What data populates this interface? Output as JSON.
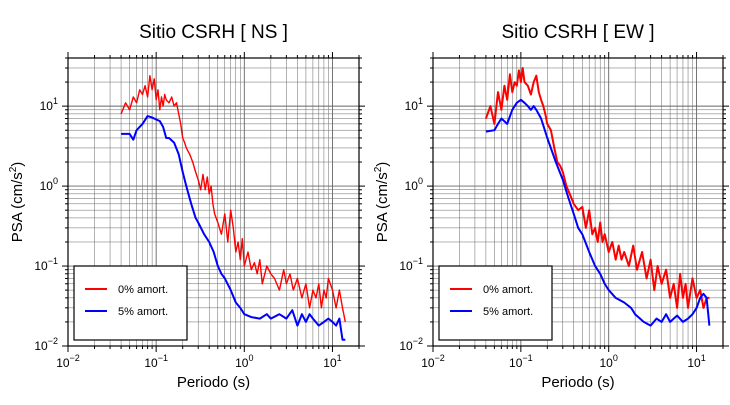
{
  "chart_data": [
    {
      "type": "line",
      "title": "Sitio CSRH [ NS ]",
      "xlabel": "Periodo (s)",
      "ylabel_main": "PSA (cm/s",
      "ylabel_exp": "2",
      "ylabel_close": ")",
      "xscale": "log",
      "yscale": "log",
      "xlim": [
        0.01,
        20
      ],
      "ylim": [
        0.01,
        40
      ],
      "grid": true,
      "legend_position": "bottom-left",
      "x_ticks": [
        {
          "base": "10",
          "exp": "−2"
        },
        {
          "base": "10",
          "exp": "−1"
        },
        {
          "base": "10",
          "exp": "0"
        },
        {
          "base": "10",
          "exp": "1"
        }
      ],
      "y_ticks": [
        {
          "base": "10",
          "exp": "−2"
        },
        {
          "base": "10",
          "exp": "−1"
        },
        {
          "base": "10",
          "exp": "0"
        },
        {
          "base": "10",
          "exp": "1"
        }
      ],
      "series": [
        {
          "name": "0% amort.",
          "color": "#ff0000",
          "x": [
            0.04,
            0.045,
            0.05,
            0.055,
            0.06,
            0.065,
            0.07,
            0.075,
            0.08,
            0.085,
            0.09,
            0.095,
            0.1,
            0.105,
            0.11,
            0.115,
            0.12,
            0.125,
            0.13,
            0.14,
            0.15,
            0.16,
            0.17,
            0.18,
            0.19,
            0.2,
            0.21,
            0.22,
            0.24,
            0.26,
            0.28,
            0.3,
            0.32,
            0.34,
            0.36,
            0.38,
            0.4,
            0.42,
            0.44,
            0.46,
            0.5,
            0.55,
            0.6,
            0.65,
            0.7,
            0.75,
            0.8,
            0.85,
            0.9,
            0.95,
            1.0,
            1.1,
            1.2,
            1.3,
            1.4,
            1.5,
            1.6,
            1.8,
            2.0,
            2.2,
            2.5,
            2.8,
            3.0,
            3.3,
            3.6,
            4.0,
            4.5,
            5.0,
            5.5,
            6.0,
            6.5,
            7.0,
            7.5,
            8.0,
            8.5,
            9.0,
            10,
            11,
            12,
            13,
            14
          ],
          "y": [
            8,
            11,
            9,
            13,
            11,
            16,
            14,
            18,
            13,
            24,
            16,
            22,
            12,
            16,
            9,
            13,
            10,
            14,
            12,
            11,
            13,
            10,
            11,
            8,
            6,
            4,
            3.5,
            3,
            2.5,
            2,
            1.5,
            1.2,
            0.9,
            1.4,
            0.9,
            1.3,
            0.8,
            1,
            0.6,
            0.45,
            0.35,
            0.25,
            0.45,
            0.2,
            0.5,
            0.3,
            0.15,
            0.2,
            0.12,
            0.22,
            0.1,
            0.15,
            0.09,
            0.11,
            0.08,
            0.12,
            0.06,
            0.1,
            0.08,
            0.07,
            0.05,
            0.09,
            0.06,
            0.08,
            0.05,
            0.07,
            0.04,
            0.06,
            0.03,
            0.05,
            0.04,
            0.06,
            0.03,
            0.05,
            0.04,
            0.07,
            0.05,
            0.03,
            0.05,
            0.03,
            0.02
          ]
        },
        {
          "name": "5% amort.",
          "color": "#0000ff",
          "x": [
            0.04,
            0.05,
            0.055,
            0.06,
            0.07,
            0.08,
            0.09,
            0.1,
            0.11,
            0.12,
            0.13,
            0.14,
            0.16,
            0.18,
            0.2,
            0.22,
            0.25,
            0.28,
            0.3,
            0.35,
            0.4,
            0.45,
            0.5,
            0.55,
            0.6,
            0.7,
            0.8,
            0.9,
            1.0,
            1.2,
            1.5,
            1.8,
            2.0,
            2.5,
            3.0,
            3.5,
            4.0,
            4.5,
            5.0,
            5.5,
            6.0,
            7.0,
            8.0,
            9.0,
            10,
            11,
            12,
            13,
            14
          ],
          "y": [
            4.5,
            4.5,
            3.8,
            5,
            6,
            7.5,
            7.2,
            6.8,
            6.5,
            5.5,
            4,
            4,
            3.5,
            2.5,
            1.5,
            1,
            0.6,
            0.4,
            0.35,
            0.25,
            0.2,
            0.15,
            0.1,
            0.08,
            0.07,
            0.05,
            0.035,
            0.03,
            0.025,
            0.023,
            0.022,
            0.025,
            0.022,
            0.025,
            0.022,
            0.028,
            0.018,
            0.025,
            0.02,
            0.025,
            0.022,
            0.018,
            0.02,
            0.022,
            0.02,
            0.018,
            0.022,
            0.012,
            0.012
          ]
        }
      ]
    },
    {
      "type": "line",
      "title": "Sitio CSRH [ EW ]",
      "xlabel": "Periodo (s)",
      "ylabel_main": "PSA (cm/s",
      "ylabel_exp": "2",
      "ylabel_close": ")",
      "xscale": "log",
      "yscale": "log",
      "xlim": [
        0.01,
        20
      ],
      "ylim": [
        0.01,
        40
      ],
      "grid": true,
      "legend_position": "bottom-left",
      "x_ticks": [
        {
          "base": "10",
          "exp": "−2"
        },
        {
          "base": "10",
          "exp": "−1"
        },
        {
          "base": "10",
          "exp": "0"
        },
        {
          "base": "10",
          "exp": "1"
        }
      ],
      "y_ticks": [
        {
          "base": "10",
          "exp": "−2"
        },
        {
          "base": "10",
          "exp": "−1"
        },
        {
          "base": "10",
          "exp": "0"
        },
        {
          "base": "10",
          "exp": "1"
        }
      ],
      "series": [
        {
          "name": "0% amort.",
          "color": "#ff0000",
          "x": [
            0.04,
            0.045,
            0.05,
            0.055,
            0.06,
            0.065,
            0.07,
            0.075,
            0.08,
            0.085,
            0.09,
            0.095,
            0.1,
            0.105,
            0.11,
            0.12,
            0.13,
            0.14,
            0.15,
            0.16,
            0.17,
            0.18,
            0.19,
            0.2,
            0.22,
            0.24,
            0.26,
            0.28,
            0.3,
            0.33,
            0.36,
            0.4,
            0.45,
            0.5,
            0.55,
            0.6,
            0.65,
            0.7,
            0.75,
            0.8,
            0.85,
            0.9,
            1.0,
            1.1,
            1.2,
            1.3,
            1.4,
            1.5,
            1.7,
            1.9,
            2.1,
            2.4,
            2.7,
            3.0,
            3.3,
            3.6,
            4.0,
            4.5,
            5.0,
            5.5,
            6.0,
            6.5,
            7.0,
            7.5,
            8.0,
            9.0,
            10,
            11,
            12,
            13,
            14
          ],
          "y": [
            7,
            10,
            6,
            15,
            9,
            18,
            12,
            25,
            15,
            20,
            18,
            28,
            20,
            30,
            20,
            18,
            14,
            20,
            24,
            15,
            12,
            10,
            8,
            6,
            5,
            3,
            2,
            1.8,
            1.5,
            1,
            0.8,
            0.6,
            0.5,
            0.55,
            0.3,
            0.5,
            0.25,
            0.3,
            0.2,
            0.35,
            0.2,
            0.25,
            0.15,
            0.2,
            0.12,
            0.18,
            0.12,
            0.15,
            0.1,
            0.18,
            0.09,
            0.15,
            0.07,
            0.12,
            0.05,
            0.1,
            0.06,
            0.09,
            0.04,
            0.06,
            0.03,
            0.08,
            0.04,
            0.06,
            0.03,
            0.07,
            0.04,
            0.05,
            0.03,
            0.04,
            0.04
          ]
        },
        {
          "name": "5% amort.",
          "color": "#0000ff",
          "x": [
            0.04,
            0.05,
            0.055,
            0.06,
            0.07,
            0.08,
            0.09,
            0.1,
            0.11,
            0.12,
            0.13,
            0.14,
            0.15,
            0.17,
            0.2,
            0.25,
            0.3,
            0.35,
            0.4,
            0.45,
            0.5,
            0.6,
            0.7,
            0.8,
            0.9,
            1.0,
            1.2,
            1.5,
            1.8,
            2.0,
            2.5,
            3.0,
            3.5,
            4.0,
            4.5,
            5.0,
            5.5,
            6.0,
            7.0,
            8.0,
            9.0,
            10,
            11,
            12,
            13,
            14
          ],
          "y": [
            4.8,
            5,
            6,
            7,
            6,
            9,
            11,
            12,
            11,
            10,
            9,
            10,
            9,
            7,
            4,
            2,
            1.2,
            0.7,
            0.45,
            0.3,
            0.25,
            0.15,
            0.1,
            0.08,
            0.06,
            0.05,
            0.04,
            0.035,
            0.03,
            0.025,
            0.02,
            0.018,
            0.022,
            0.02,
            0.025,
            0.02,
            0.022,
            0.024,
            0.02,
            0.022,
            0.025,
            0.03,
            0.04,
            0.045,
            0.04,
            0.018
          ]
        }
      ]
    }
  ]
}
